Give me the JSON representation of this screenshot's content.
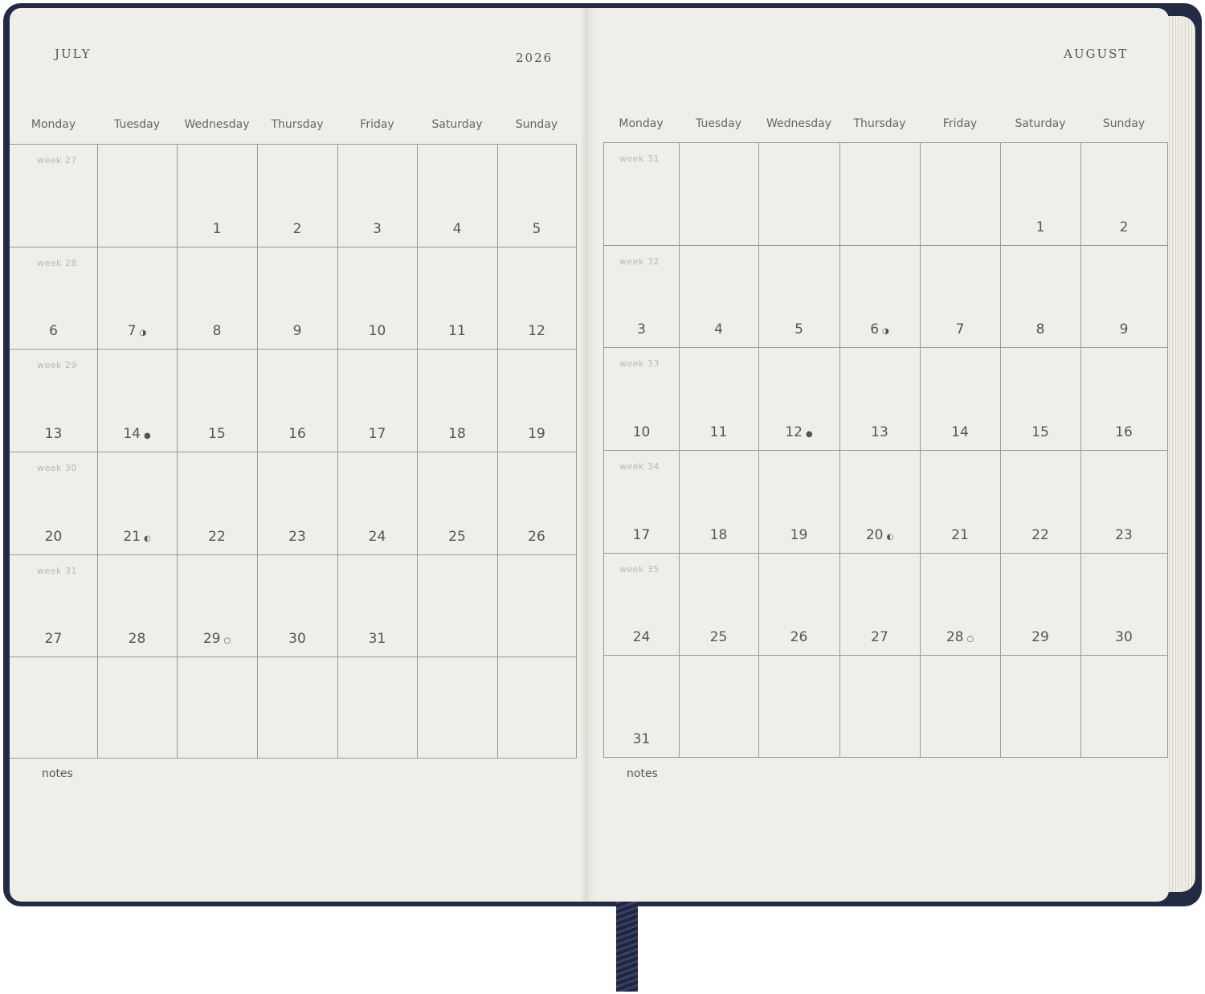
{
  "colors": {
    "cover": "#222a44",
    "paper": "#efeee8",
    "grid": "#9a9a98",
    "text": "#555555"
  },
  "moon_icons": {
    "last-quarter": "◑",
    "new": "●",
    "first-quarter": "◐",
    "full": "○"
  },
  "left": {
    "month": "JULY",
    "year": "2026",
    "weekdays": [
      "Monday",
      "Tuesday",
      "Wednesday",
      "Thursday",
      "Friday",
      "Saturday",
      "Sunday"
    ],
    "rows": [
      {
        "week": "week 27",
        "days": [
          "",
          "",
          "1",
          "2",
          "3",
          "4",
          "5"
        ]
      },
      {
        "week": "week 28",
        "days": [
          "6",
          "7",
          "8",
          "9",
          "10",
          "11",
          "12"
        ]
      },
      {
        "week": "week 29",
        "days": [
          "13",
          "14",
          "15",
          "16",
          "17",
          "18",
          "19"
        ]
      },
      {
        "week": "week 30",
        "days": [
          "20",
          "21",
          "22",
          "23",
          "24",
          "25",
          "26"
        ]
      },
      {
        "week": "week 31",
        "days": [
          "27",
          "28",
          "29",
          "30",
          "31",
          "",
          ""
        ]
      },
      {
        "week": "",
        "days": [
          "",
          "",
          "",
          "",
          "",
          "",
          ""
        ]
      }
    ],
    "moons": {
      "7": "last-quarter",
      "14": "new",
      "21": "first-quarter",
      "29": "full"
    },
    "notes": "notes"
  },
  "right": {
    "month": "AUGUST",
    "weekdays": [
      "Monday",
      "Tuesday",
      "Wednesday",
      "Thursday",
      "Friday",
      "Saturday",
      "Sunday"
    ],
    "rows": [
      {
        "week": "week 31",
        "days": [
          "",
          "",
          "",
          "",
          "",
          "1",
          "2"
        ]
      },
      {
        "week": "week 32",
        "days": [
          "3",
          "4",
          "5",
          "6",
          "7",
          "8",
          "9"
        ]
      },
      {
        "week": "week 33",
        "days": [
          "10",
          "11",
          "12",
          "13",
          "14",
          "15",
          "16"
        ]
      },
      {
        "week": "week 34",
        "days": [
          "17",
          "18",
          "19",
          "20",
          "21",
          "22",
          "23"
        ]
      },
      {
        "week": "week 35",
        "days": [
          "24",
          "25",
          "26",
          "27",
          "28",
          "29",
          "30"
        ]
      },
      {
        "week": "",
        "days": [
          "31",
          "",
          "",
          "",
          "",
          "",
          ""
        ]
      }
    ],
    "moons": {
      "6": "last-quarter",
      "12": "new",
      "20": "first-quarter",
      "28": "full"
    },
    "notes": "notes"
  }
}
